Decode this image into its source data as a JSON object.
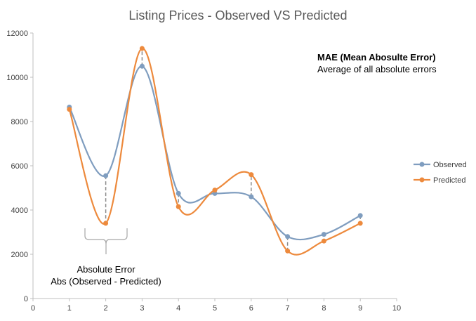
{
  "chart_data": {
    "type": "line",
    "title": "Listing Prices - Observed VS Predicted",
    "xlim": [
      0,
      10
    ],
    "ylim": [
      0,
      12000
    ],
    "x_ticks": [
      0,
      1,
      2,
      3,
      4,
      5,
      6,
      7,
      8,
      9,
      10
    ],
    "y_ticks": [
      0,
      2000,
      4000,
      6000,
      8000,
      10000,
      12000
    ],
    "grid": false,
    "smooth": true,
    "legend_position": "right",
    "series": [
      {
        "name": "Observed",
        "color": "#7f9dbf",
        "x": [
          1,
          2,
          3,
          4,
          5,
          6,
          7,
          8,
          9
        ],
        "y": [
          8650,
          5550,
          10500,
          4750,
          4750,
          4600,
          2800,
          2900,
          3750
        ]
      },
      {
        "name": "Predicted",
        "color": "#ed8a3d",
        "x": [
          1,
          2,
          3,
          4,
          5,
          6,
          7,
          8,
          9
        ],
        "y": [
          8550,
          3400,
          11300,
          4150,
          4900,
          5600,
          2150,
          2600,
          3400
        ]
      }
    ],
    "annotations": {
      "mae_title": "MAE  (Mean Abosulte Error)",
      "mae_desc": "Average of all absolute errors",
      "abs_error_title": "Absolute Error",
      "abs_error_formula": "Abs (Observed - Predicted)"
    }
  }
}
